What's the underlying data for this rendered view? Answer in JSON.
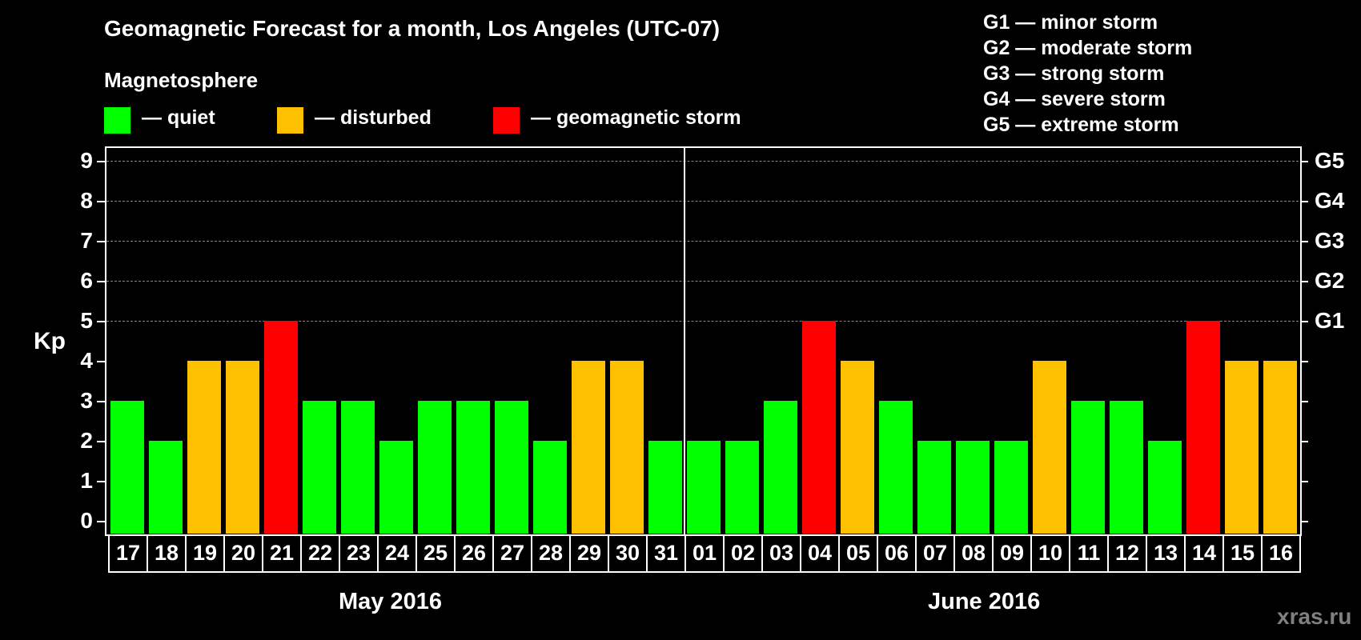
{
  "header": {
    "title": "Geomagnetic Forecast for a month, Los Angeles (UTC-07)",
    "subtitle": "Magnetosphere"
  },
  "legend": {
    "items": [
      {
        "label": "— quiet",
        "color": "#00ff00"
      },
      {
        "label": "— disturbed",
        "color": "#ffc000"
      },
      {
        "label": "— geomagnetic storm",
        "color": "#ff0000"
      }
    ]
  },
  "g_legend": [
    "G1 — minor storm",
    "G2 — moderate storm",
    "G3 — strong storm",
    "G4 — severe storm",
    "G5 — extreme storm"
  ],
  "axis": {
    "ylabel": "Kp",
    "yticks": [
      "0",
      "1",
      "2",
      "3",
      "4",
      "5",
      "6",
      "7",
      "8",
      "9"
    ],
    "gticks": [
      {
        "kp": 5,
        "label": "G1"
      },
      {
        "kp": 6,
        "label": "G2"
      },
      {
        "kp": 7,
        "label": "G3"
      },
      {
        "kp": 8,
        "label": "G4"
      },
      {
        "kp": 9,
        "label": "G5"
      }
    ]
  },
  "months": [
    "May 2016",
    "June 2016"
  ],
  "watermark": "xras.ru",
  "colors": {
    "quiet": "#00ff00",
    "disturbed": "#ffc000",
    "storm": "#ff0000"
  },
  "chart_data": {
    "type": "bar",
    "title": "Geomagnetic Forecast for a month, Los Angeles (UTC-07)",
    "subtitle": "Magnetosphere",
    "xlabel": "",
    "ylabel": "Kp",
    "ylim": [
      0,
      9
    ],
    "grid": "dashed horizontal at 5,6,7,8,9",
    "legend_position": "top",
    "categories": [
      "17",
      "18",
      "19",
      "20",
      "21",
      "22",
      "23",
      "24",
      "25",
      "26",
      "27",
      "28",
      "29",
      "30",
      "31",
      "01",
      "02",
      "03",
      "04",
      "05",
      "06",
      "07",
      "08",
      "09",
      "10",
      "11",
      "12",
      "13",
      "14",
      "15",
      "16"
    ],
    "month_groups": [
      {
        "label": "May 2016",
        "days": 15
      },
      {
        "label": "June 2016",
        "days": 16
      }
    ],
    "values": [
      3,
      2,
      4,
      4,
      5,
      3,
      3,
      2,
      3,
      3,
      3,
      2,
      4,
      4,
      2,
      2,
      2,
      3,
      5,
      4,
      3,
      2,
      2,
      2,
      4,
      3,
      3,
      2,
      5,
      4,
      4
    ],
    "status": [
      "quiet",
      "quiet",
      "disturbed",
      "disturbed",
      "storm",
      "quiet",
      "quiet",
      "quiet",
      "quiet",
      "quiet",
      "quiet",
      "quiet",
      "disturbed",
      "disturbed",
      "quiet",
      "quiet",
      "quiet",
      "quiet",
      "storm",
      "disturbed",
      "quiet",
      "quiet",
      "quiet",
      "quiet",
      "disturbed",
      "quiet",
      "quiet",
      "quiet",
      "storm",
      "disturbed",
      "disturbed"
    ],
    "right_axis_labels": {
      "5": "G1",
      "6": "G2",
      "7": "G3",
      "8": "G4",
      "9": "G5"
    }
  }
}
